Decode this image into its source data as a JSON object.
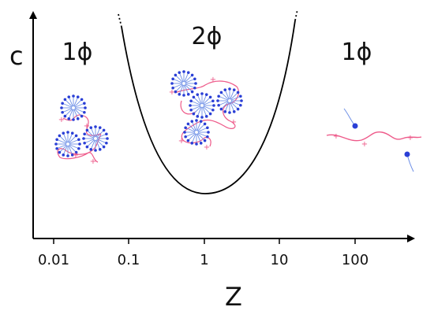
{
  "axes": {
    "y_label": "c",
    "x_label": "Z",
    "x_ticks": [
      "0.01",
      "0.1",
      "1",
      "10",
      "100"
    ],
    "x_scale": "log"
  },
  "regions": [
    {
      "label": "1ϕ"
    },
    {
      "label": "2ϕ"
    },
    {
      "label": "1ϕ"
    }
  ],
  "colors": {
    "axis": "#000000",
    "boundary": "#000000",
    "surfactant": "#2a3fd6",
    "polymer": "#ee5a8a"
  }
}
